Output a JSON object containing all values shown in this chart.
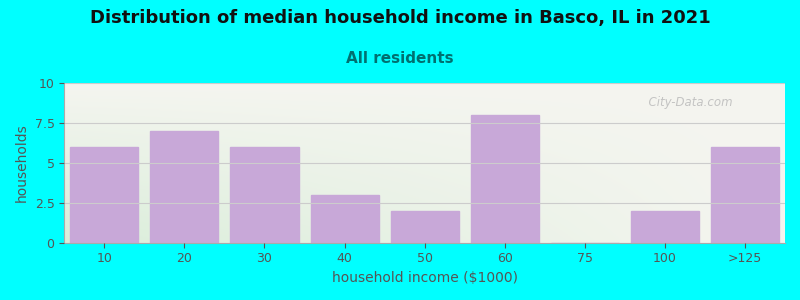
{
  "title": "Distribution of median household income in Basco, IL in 2021",
  "subtitle": "All residents",
  "xlabel": "household income ($1000)",
  "ylabel": "households",
  "categories": [
    "10",
    "20",
    "30",
    "40",
    "50",
    "60",
    "75",
    "100",
    ">125"
  ],
  "values": [
    6,
    7,
    6,
    3,
    2,
    8,
    0,
    2,
    6
  ],
  "bar_color": "#c8a8d8",
  "background_color": "#00ffff",
  "plot_bg_top_color": "#f5f5f0",
  "plot_bg_bottom_color": "#daeeda",
  "ylim": [
    0,
    10
  ],
  "yticks": [
    0,
    2.5,
    5,
    7.5,
    10
  ],
  "title_fontsize": 13,
  "subtitle_fontsize": 11,
  "label_fontsize": 10,
  "tick_fontsize": 9,
  "title_color": "#111111",
  "subtitle_color": "#007070",
  "label_color": "#555555",
  "watermark": "  City-Data.com",
  "grid_color": "#cccccc"
}
